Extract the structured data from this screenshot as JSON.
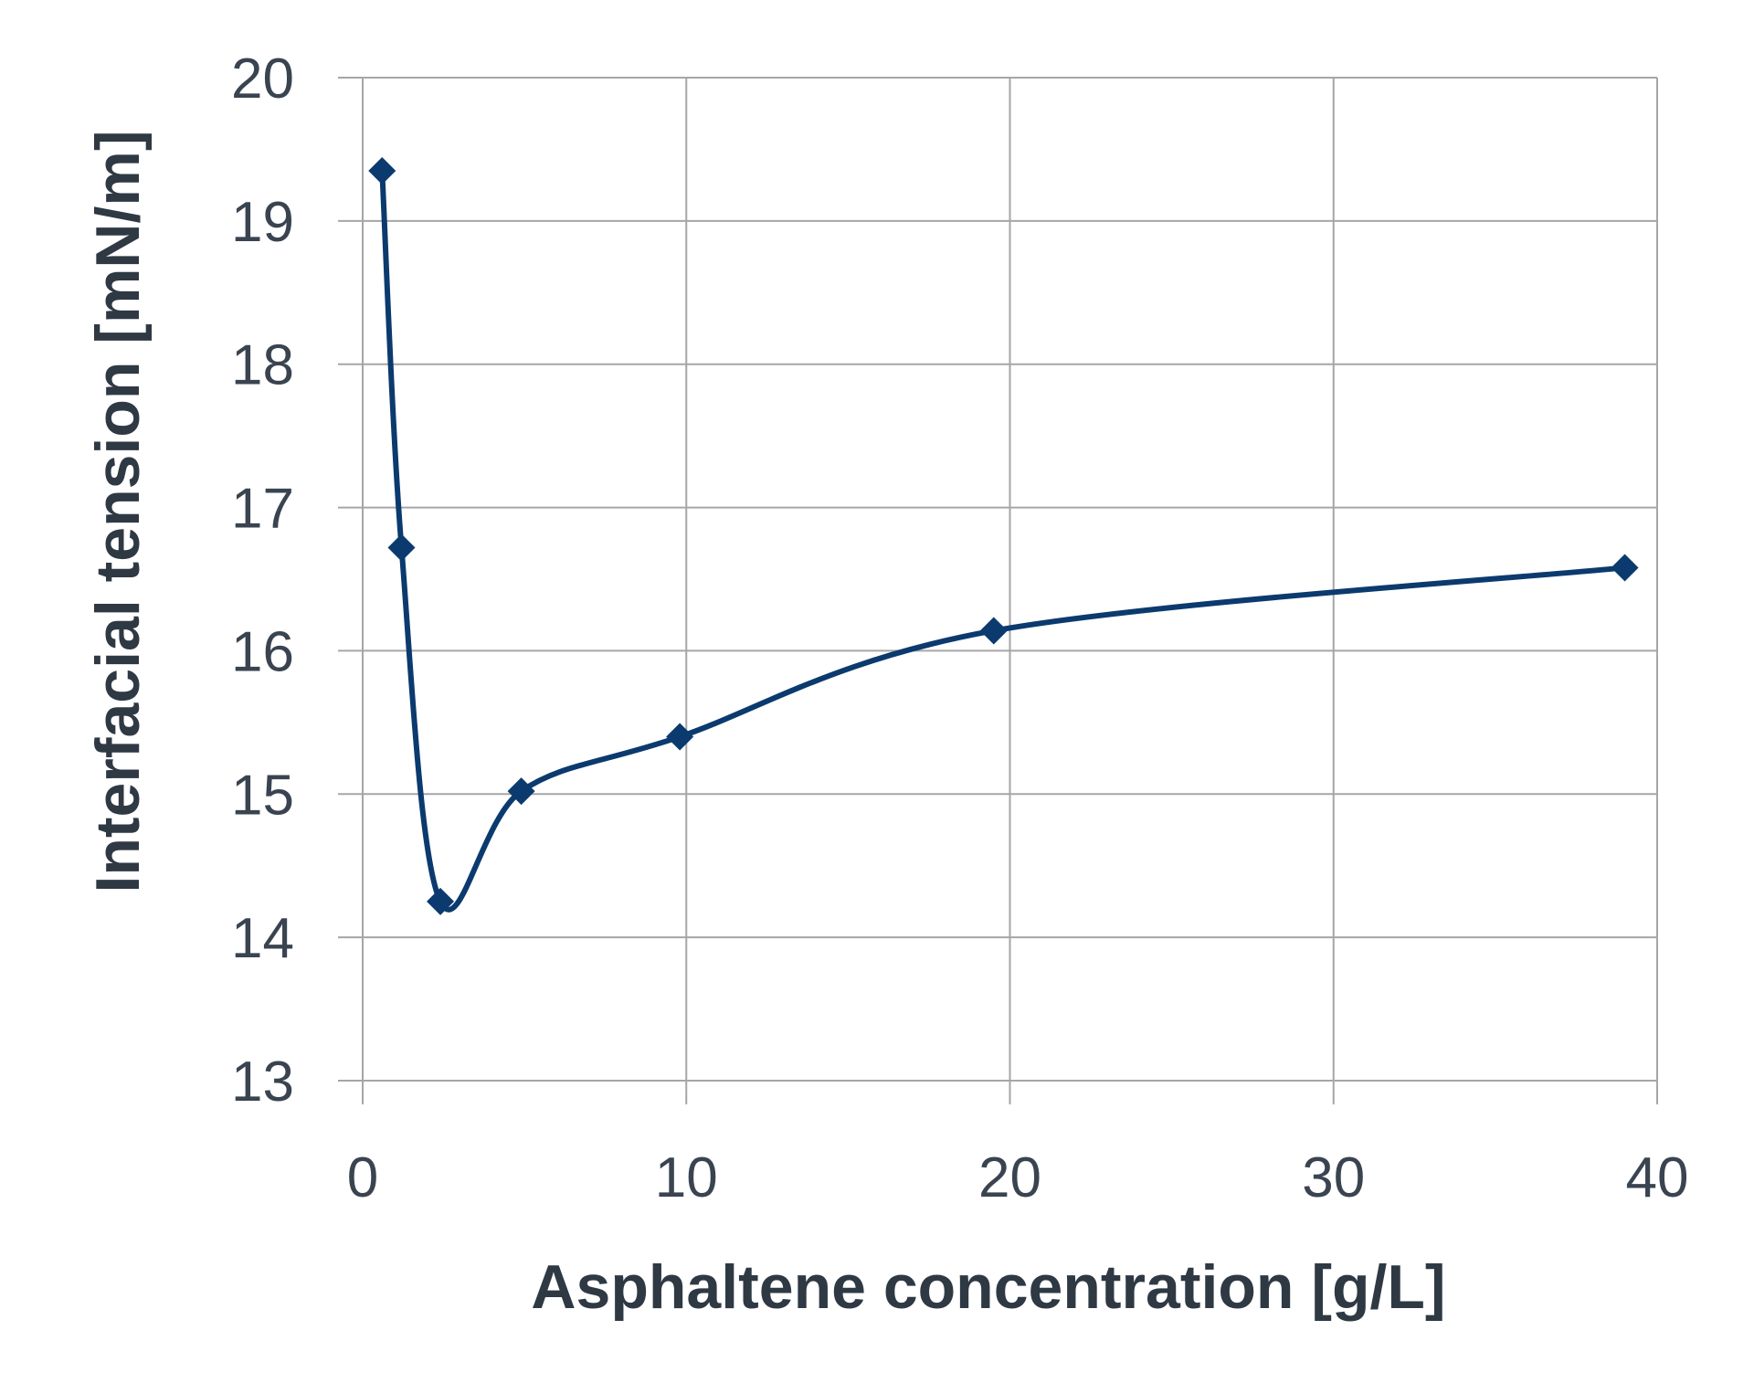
{
  "chart_data": {
    "type": "line",
    "xlabel": "Asphaltene concentration [g/L]",
    "ylabel": "Interfacial tension [mN/m]",
    "xlim": [
      0,
      40
    ],
    "ylim": [
      13,
      20
    ],
    "x_ticks": [
      0,
      10,
      20,
      30,
      40
    ],
    "y_ticks": [
      13,
      14,
      15,
      16,
      17,
      18,
      19,
      20
    ],
    "x_tick_labels": [
      "0",
      "10",
      "20",
      "30",
      "40"
    ],
    "y_tick_labels": [
      "13",
      "14",
      "15",
      "16",
      "17",
      "18",
      "19",
      "20"
    ],
    "grid": true,
    "smooth": true,
    "marker": "diamond",
    "series": [
      {
        "color": "#0b3a6e",
        "x": [
          0.6,
          1.2,
          2.4,
          4.9,
          9.8,
          19.5,
          39
        ],
        "y": [
          19.35,
          16.72,
          14.25,
          15.02,
          15.4,
          16.14,
          16.58
        ]
      }
    ]
  }
}
